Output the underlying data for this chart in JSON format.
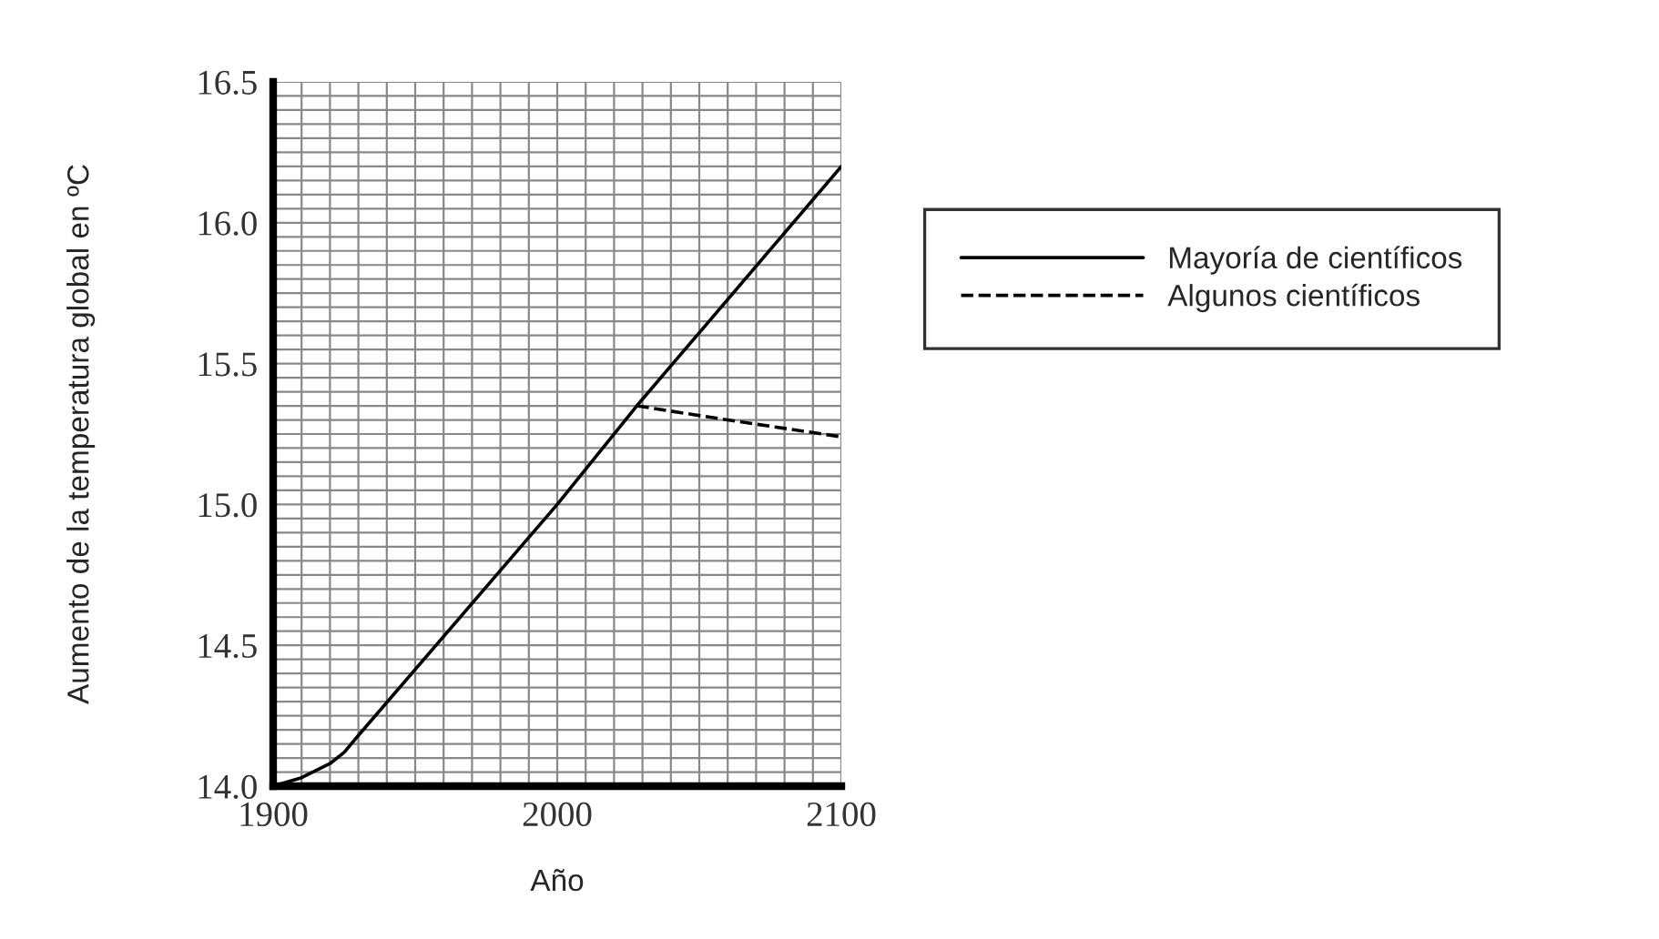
{
  "chart_data": {
    "type": "line",
    "xlabel": "Año",
    "ylabel": "Aumento de la temperatura global en ºC",
    "series": [
      {
        "name": "Mayoría de científicos",
        "color": "#000000",
        "line_style": "solid",
        "x": [
          1900,
          1910,
          1920,
          1925,
          1930,
          2000,
          2028,
          2100
        ],
        "values": [
          14.0,
          14.03,
          14.08,
          14.12,
          14.18,
          15.0,
          15.35,
          16.2
        ]
      },
      {
        "name": "Algunos científicos",
        "color": "#000000",
        "line_style": "dashed",
        "x": [
          2028,
          2060,
          2100
        ],
        "values": [
          15.35,
          15.3,
          15.24
        ]
      }
    ],
    "xlim": [
      1900,
      2100
    ],
    "ylim": [
      14.0,
      16.5
    ],
    "xticks": [
      1900,
      {
        "value": 1910,
        "label": null
      },
      {
        "value": 1920,
        "label": null
      },
      {
        "value": 1930,
        "label": null
      },
      {
        "value": 1940,
        "label": null
      },
      {
        "value": 1950,
        "label": null
      },
      {
        "value": 1960,
        "label": null
      },
      {
        "value": 1970,
        "label": null
      },
      {
        "value": 1980,
        "label": null
      },
      {
        "value": 1990,
        "label": null
      },
      2000,
      {
        "value": 2010,
        "label": null
      },
      {
        "value": 2020,
        "label": null
      },
      {
        "value": 2030,
        "label": null
      },
      {
        "value": 2040,
        "label": null
      },
      {
        "value": 2050,
        "label": null
      },
      {
        "value": 2060,
        "label": null
      },
      {
        "value": 2070,
        "label": null
      },
      {
        "value": 2080,
        "label": null
      },
      {
        "value": 2090,
        "label": null
      },
      2100
    ],
    "yticks": [
      {
        "value": 14.0,
        "label": "14.0"
      },
      {
        "value": 14.05,
        "label": null
      },
      {
        "value": 14.1,
        "label": null
      },
      {
        "value": 14.15,
        "label": null
      },
      {
        "value": 14.2,
        "label": null
      },
      {
        "value": 14.25,
        "label": null
      },
      {
        "value": 14.3,
        "label": null
      },
      {
        "value": 14.35,
        "label": null
      },
      {
        "value": 14.4,
        "label": null
      },
      {
        "value": 14.45,
        "label": null
      },
      {
        "value": 14.5,
        "label": "14.5"
      },
      {
        "value": 14.55,
        "label": null
      },
      {
        "value": 14.6,
        "label": null
      },
      {
        "value": 14.65,
        "label": null
      },
      {
        "value": 14.7,
        "label": null
      },
      {
        "value": 14.75,
        "label": null
      },
      {
        "value": 14.8,
        "label": null
      },
      {
        "value": 14.85,
        "label": null
      },
      {
        "value": 14.9,
        "label": null
      },
      {
        "value": 14.95,
        "label": null
      },
      {
        "value": 15.0,
        "label": "15.0"
      },
      {
        "value": 15.05,
        "label": null
      },
      {
        "value": 15.1,
        "label": null
      },
      {
        "value": 15.15,
        "label": null
      },
      {
        "value": 15.2,
        "label": null
      },
      {
        "value": 15.25,
        "label": null
      },
      {
        "value": 15.3,
        "label": null
      },
      {
        "value": 15.35,
        "label": null
      },
      {
        "value": 15.4,
        "label": null
      },
      {
        "value": 15.45,
        "label": null
      },
      {
        "value": 15.5,
        "label": "15.5"
      },
      {
        "value": 15.55,
        "label": null
      },
      {
        "value": 15.6,
        "label": null
      },
      {
        "value": 15.65,
        "label": null
      },
      {
        "value": 15.7,
        "label": null
      },
      {
        "value": 15.75,
        "label": null
      },
      {
        "value": 15.8,
        "label": null
      },
      {
        "value": 15.85,
        "label": null
      },
      {
        "value": 15.9,
        "label": null
      },
      {
        "value": 15.95,
        "label": null
      },
      {
        "value": 16.0,
        "label": "16.0"
      },
      {
        "value": 16.05,
        "label": null
      },
      {
        "value": 16.1,
        "label": null
      },
      {
        "value": 16.15,
        "label": null
      },
      {
        "value": 16.2,
        "label": null
      },
      {
        "value": 16.25,
        "label": null
      },
      {
        "value": 16.3,
        "label": null
      },
      {
        "value": 16.35,
        "label": null
      },
      {
        "value": 16.4,
        "label": null
      },
      {
        "value": 16.45,
        "label": null
      },
      {
        "value": 16.5,
        "label": "16.5"
      }
    ],
    "grid": true,
    "legend": "right",
    "marker": "none"
  }
}
